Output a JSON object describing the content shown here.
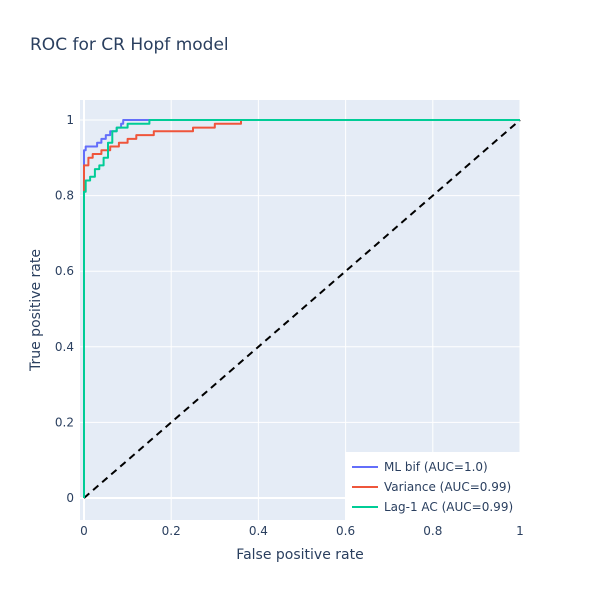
{
  "chart_data": {
    "type": "line",
    "title": "ROC for CR Hopf model",
    "xlabel": "False positive rate",
    "ylabel": "True positive rate",
    "xlim": [
      0,
      1
    ],
    "ylim": [
      0,
      1
    ],
    "x_ticks": [
      "0",
      "0.2",
      "0.4",
      "0.6",
      "0.8",
      "1"
    ],
    "y_ticks": [
      "0",
      "0.2",
      "0.4",
      "0.6",
      "0.8",
      "1"
    ],
    "grid": true,
    "legend_position": "bottom-right",
    "diagonal": {
      "x": [
        0,
        1
      ],
      "y": [
        0,
        1
      ],
      "color": "#000000",
      "dash": "dashed"
    },
    "series": [
      {
        "name": "ML bif (AUC=1.0)",
        "color": "#636efa",
        "x": [
          0,
          0,
          0.004,
          0.004,
          0.03,
          0.03,
          0.04,
          0.04,
          0.05,
          0.05,
          0.06,
          0.06,
          0.075,
          0.075,
          0.085,
          0.085,
          0.09,
          0.09,
          0.15,
          0.15
        ],
        "y": [
          0,
          0.92,
          0.92,
          0.93,
          0.93,
          0.94,
          0.94,
          0.95,
          0.95,
          0.96,
          0.96,
          0.97,
          0.97,
          0.98,
          0.98,
          0.99,
          0.99,
          1.0,
          1.0,
          1.0
        ]
      },
      {
        "name": "Variance (AUC=0.99)",
        "color": "#ef553b",
        "x": [
          0,
          0,
          0.01,
          0.01,
          0.02,
          0.02,
          0.04,
          0.04,
          0.06,
          0.06,
          0.08,
          0.08,
          0.1,
          0.1,
          0.12,
          0.12,
          0.16,
          0.16,
          0.25,
          0.25,
          0.3,
          0.3,
          0.36,
          0.36,
          1.0
        ],
        "y": [
          0,
          0.88,
          0.88,
          0.9,
          0.9,
          0.91,
          0.91,
          0.92,
          0.92,
          0.93,
          0.93,
          0.94,
          0.94,
          0.95,
          0.95,
          0.96,
          0.96,
          0.97,
          0.97,
          0.98,
          0.98,
          0.99,
          0.99,
          1.0,
          1.0
        ]
      },
      {
        "name": "Lag-1 AC (AUC=0.99)",
        "color": "#00cc96",
        "x": [
          0,
          0,
          0.004,
          0.004,
          0.014,
          0.014,
          0.025,
          0.025,
          0.035,
          0.035,
          0.045,
          0.045,
          0.055,
          0.055,
          0.065,
          0.065,
          0.075,
          0.075,
          0.1,
          0.1,
          0.15,
          0.15,
          1.0
        ],
        "y": [
          0,
          0.81,
          0.81,
          0.84,
          0.84,
          0.85,
          0.85,
          0.87,
          0.87,
          0.88,
          0.88,
          0.9,
          0.9,
          0.94,
          0.94,
          0.97,
          0.97,
          0.98,
          0.98,
          0.99,
          0.99,
          1.0,
          1.0
        ]
      }
    ]
  }
}
